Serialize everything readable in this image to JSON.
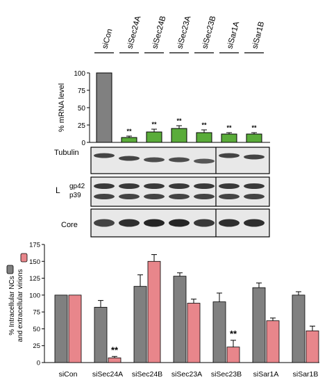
{
  "chart_data": [
    {
      "type": "bar",
      "ylabel": "% mRNA level",
      "ylim": [
        0,
        100
      ],
      "yticks": [
        0,
        25,
        50,
        75,
        100
      ],
      "categories": [
        "siCon",
        "siSec24A",
        "siSec24B",
        "siSec23A",
        "siSec23B",
        "siSar1A",
        "siSar1B"
      ],
      "values": [
        100,
        7,
        15,
        20,
        14,
        12,
        12
      ],
      "errors": [
        0,
        2,
        4,
        4,
        4,
        2,
        2
      ],
      "significance": [
        "",
        "**",
        "**",
        "**",
        "**",
        "**",
        "**"
      ],
      "colors": [
        "#808080",
        "#5aac3a",
        "#5aac3a",
        "#5aac3a",
        "#5aac3a",
        "#5aac3a",
        "#5aac3a"
      ]
    },
    {
      "type": "table",
      "blots": [
        {
          "label": "Tubulin",
          "bands": [
            "Tubulin"
          ]
        },
        {
          "label": "L",
          "bands": [
            "gp42",
            "p39"
          ]
        },
        {
          "label": "Core",
          "bands": [
            "Core"
          ]
        }
      ]
    },
    {
      "type": "bar",
      "ylabel_line1": "% Intracellular NCs",
      "ylabel_line2": "and extracellular virions",
      "ylim": [
        0,
        175
      ],
      "yticks": [
        0,
        25,
        50,
        75,
        100,
        125,
        150,
        175
      ],
      "categories": [
        "siCon",
        "siSec24A",
        "siSec24B",
        "siSec23A",
        "siSec23B",
        "siSar1A",
        "siSar1B"
      ],
      "series": [
        {
          "values": [
            100,
            82,
            113,
            128,
            90,
            111,
            100
          ],
          "errors": [
            0,
            10,
            17,
            5,
            13,
            7,
            5
          ],
          "color": "#808080"
        },
        {
          "values": [
            100,
            7,
            150,
            88,
            23,
            62,
            47
          ],
          "errors": [
            0,
            2,
            10,
            6,
            10,
            4,
            7
          ],
          "color": "#e8868b"
        }
      ],
      "significance": [
        {
          "category": "siSec24A",
          "series": 1,
          "label": "**"
        },
        {
          "category": "siSec23B",
          "series": 1,
          "label": "**"
        }
      ]
    }
  ]
}
